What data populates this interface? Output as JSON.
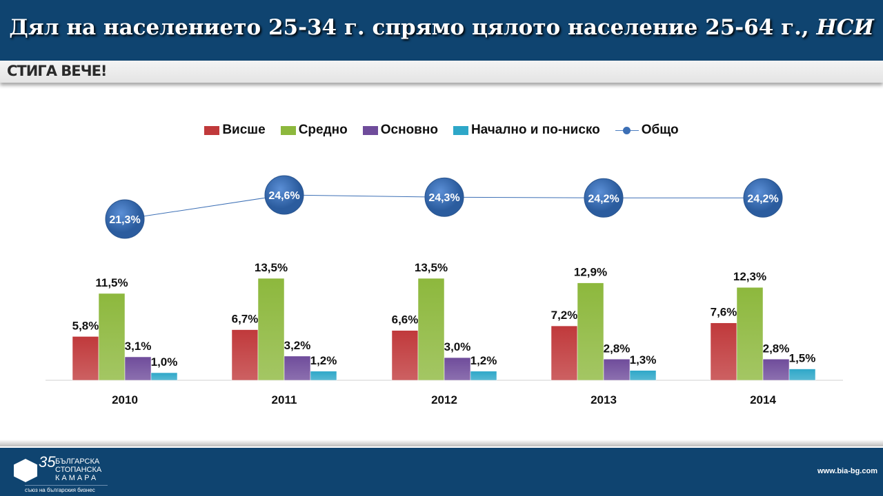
{
  "header": {
    "title_main": "Дял на населението 25-34 г. спрямо цялото население 25-64 г.,",
    "title_source": "НСИ",
    "brand": "СТИГА ВЕЧЕ!"
  },
  "footer": {
    "logo_number": "35",
    "logo_lines": [
      "БЪЛГАРСКА",
      "СТОПАНСКА",
      "КАМАРА"
    ],
    "logo_tagline": "съюз на българския бизнес",
    "url": "www.bia-bg.com"
  },
  "chart_data": {
    "type": "bar",
    "title": "Дял на населението 25-34 г. спрямо цялото население 25-64 г., НСИ",
    "categories": [
      "2010",
      "2011",
      "2012",
      "2013",
      "2014"
    ],
    "series": [
      {
        "name": "Висше",
        "color": "#c0393b",
        "values": [
          5.8,
          6.7,
          6.6,
          7.2,
          7.6
        ],
        "labels": [
          "5,8%",
          "6,7%",
          "6,6%",
          "7,2%",
          "7,6%"
        ]
      },
      {
        "name": "Средно",
        "color": "#8db83d",
        "values": [
          11.5,
          13.5,
          13.5,
          12.9,
          12.3
        ],
        "labels": [
          "11,5%",
          "13,5%",
          "13,5%",
          "12,9%",
          "12,3%"
        ]
      },
      {
        "name": "Основно",
        "color": "#6f4c9b",
        "values": [
          3.1,
          3.2,
          3.0,
          2.8,
          2.8
        ],
        "labels": [
          "3,1%",
          "3,2%",
          "3,0%",
          "2,8%",
          "2,8%"
        ]
      },
      {
        "name": "Начално и по-ниско",
        "color": "#2ea7c8",
        "values": [
          1.0,
          1.2,
          1.2,
          1.3,
          1.5
        ],
        "labels": [
          "1,0%",
          "1,2%",
          "1,2%",
          "1,3%",
          "1,5%"
        ]
      }
    ],
    "line": {
      "name": "Общо",
      "color": "#3c6fb5",
      "values": [
        21.3,
        24.6,
        24.3,
        24.2,
        24.2
      ],
      "labels": [
        "21,3%",
        "24,6%",
        "24,3%",
        "24,2%",
        "24,2%"
      ]
    },
    "legend": "top",
    "grid": false
  }
}
